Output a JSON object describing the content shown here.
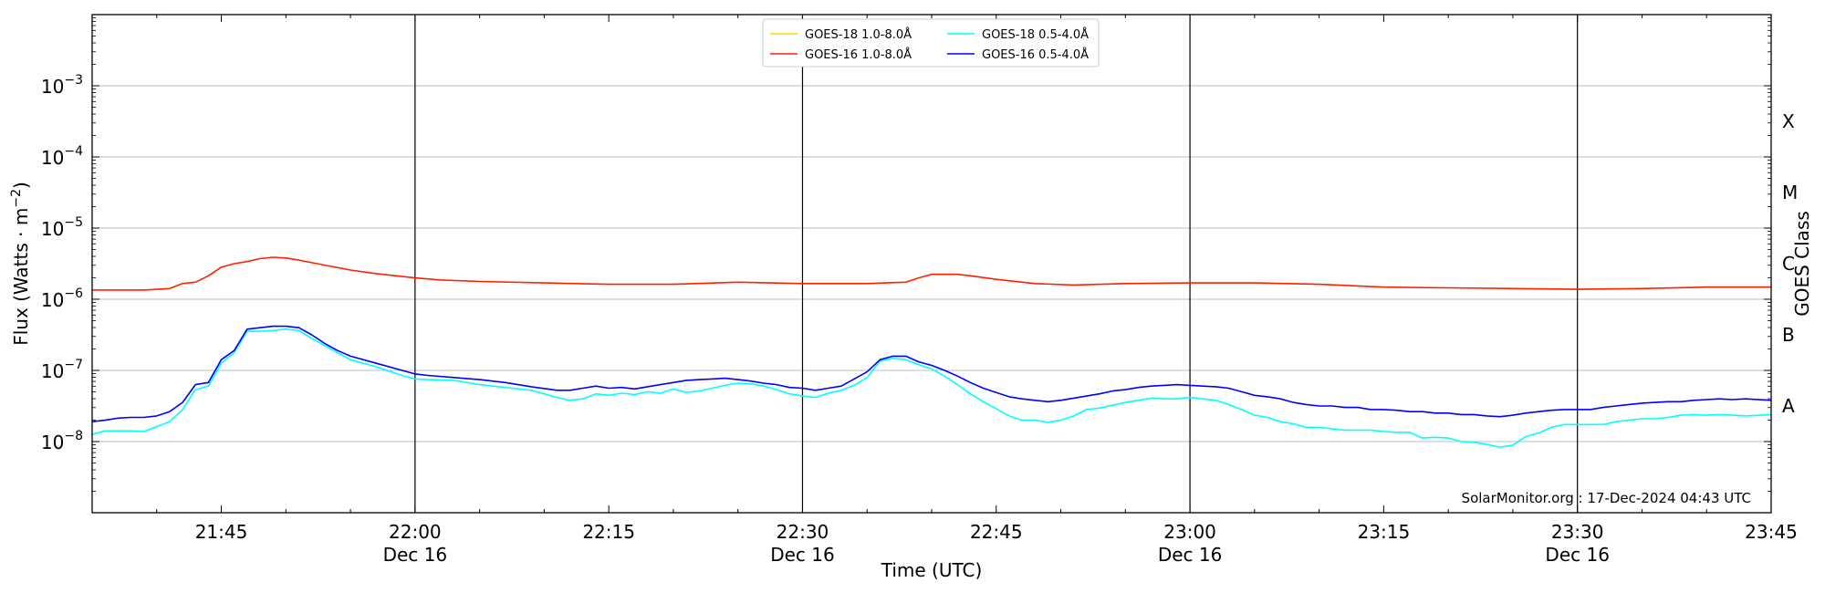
{
  "chart_data": {
    "type": "line",
    "xlabel": "Time (UTC)",
    "ylabel": "Flux (Watts · m",
    "ylabel_sup": "−2",
    "ylabel_close": ")",
    "right_ylabel": "GOES Class",
    "x_range_minutes": [
      0,
      130
    ],
    "ylim_log10": [
      -9,
      -2
    ],
    "y_scale": "log",
    "x_ticks": [
      {
        "t": 10,
        "line1": "21:45",
        "line2": ""
      },
      {
        "t": 25,
        "line1": "22:00",
        "line2": "Dec 16"
      },
      {
        "t": 40,
        "line1": "22:15",
        "line2": ""
      },
      {
        "t": 55,
        "line1": "22:30",
        "line2": "Dec 16"
      },
      {
        "t": 70,
        "line1": "22:45",
        "line2": ""
      },
      {
        "t": 85,
        "line1": "23:00",
        "line2": "Dec 16"
      },
      {
        "t": 100,
        "line1": "23:15",
        "line2": ""
      },
      {
        "t": 115,
        "line1": "23:30",
        "line2": "Dec 16"
      },
      {
        "t": 130,
        "line1": "23:45",
        "line2": ""
      }
    ],
    "x_origin_time": "21:35",
    "day_lines": [
      25,
      55,
      85,
      115
    ],
    "y_ticks": [
      {
        "exp": -8,
        "base": "10",
        "sup": "−8"
      },
      {
        "exp": -7,
        "base": "10",
        "sup": "−7"
      },
      {
        "exp": -6,
        "base": "10",
        "sup": "−6"
      },
      {
        "exp": -5,
        "base": "10",
        "sup": "−5"
      },
      {
        "exp": -4,
        "base": "10",
        "sup": "−4"
      },
      {
        "exp": -3,
        "base": "10",
        "sup": "−3"
      }
    ],
    "goes_classes": [
      {
        "label": "A",
        "exp": -7.5
      },
      {
        "label": "B",
        "exp": -6.5
      },
      {
        "label": "C",
        "exp": -5.5
      },
      {
        "label": "M",
        "exp": -4.5
      },
      {
        "label": "X",
        "exp": -3.5
      }
    ],
    "grid": true,
    "legend_position": "top-center",
    "credit": "SolarMonitor.org : 17-Dec-2024 04:43 UTC",
    "series": [
      {
        "name": "GOES-18 1.0-8.0Å",
        "color": "#ffd700",
        "points": []
      },
      {
        "name": "GOES-16 1.0-8.0Å",
        "color": "#ff2000",
        "points": [
          [
            0,
            -5.87
          ],
          [
            2,
            -5.87
          ],
          [
            4,
            -5.87
          ],
          [
            6,
            -5.85
          ],
          [
            7,
            -5.78
          ],
          [
            8,
            -5.76
          ],
          [
            9,
            -5.67
          ],
          [
            10,
            -5.55
          ],
          [
            11,
            -5.5
          ],
          [
            12,
            -5.47
          ],
          [
            13,
            -5.43
          ],
          [
            14,
            -5.41
          ],
          [
            15,
            -5.42
          ],
          [
            16,
            -5.45
          ],
          [
            18,
            -5.52
          ],
          [
            20,
            -5.59
          ],
          [
            22,
            -5.64
          ],
          [
            25,
            -5.7
          ],
          [
            27,
            -5.73
          ],
          [
            30,
            -5.75
          ],
          [
            35,
            -5.77
          ],
          [
            40,
            -5.79
          ],
          [
            45,
            -5.79
          ],
          [
            50,
            -5.76
          ],
          [
            55,
            -5.78
          ],
          [
            60,
            -5.78
          ],
          [
            63,
            -5.76
          ],
          [
            64,
            -5.7
          ],
          [
            65,
            -5.65
          ],
          [
            67,
            -5.65
          ],
          [
            68,
            -5.67
          ],
          [
            70,
            -5.72
          ],
          [
            73,
            -5.78
          ],
          [
            76,
            -5.8
          ],
          [
            80,
            -5.78
          ],
          [
            85,
            -5.77
          ],
          [
            90,
            -5.77
          ],
          [
            95,
            -5.79
          ],
          [
            100,
            -5.83
          ],
          [
            105,
            -5.84
          ],
          [
            110,
            -5.85
          ],
          [
            115,
            -5.86
          ],
          [
            120,
            -5.85
          ],
          [
            125,
            -5.83
          ],
          [
            130,
            -5.83
          ]
        ]
      },
      {
        "name": "GOES-18 0.5-4.0Å",
        "color": "#00ffff",
        "points": [
          [
            0,
            -7.9
          ],
          [
            1,
            -7.85
          ],
          [
            2,
            -7.85
          ],
          [
            3,
            -7.85
          ],
          [
            4,
            -7.86
          ],
          [
            5,
            -7.79
          ],
          [
            6,
            -7.72
          ],
          [
            7,
            -7.55
          ],
          [
            8,
            -7.27
          ],
          [
            9,
            -7.22
          ],
          [
            10,
            -6.9
          ],
          [
            11,
            -6.75
          ],
          [
            12,
            -6.45
          ],
          [
            13,
            -6.45
          ],
          [
            14,
            -6.44
          ],
          [
            15,
            -6.42
          ],
          [
            16,
            -6.44
          ],
          [
            17,
            -6.55
          ],
          [
            18,
            -6.65
          ],
          [
            19,
            -6.75
          ],
          [
            20,
            -6.85
          ],
          [
            22,
            -6.95
          ],
          [
            24,
            -7.07
          ],
          [
            25,
            -7.12
          ],
          [
            26,
            -7.13
          ],
          [
            28,
            -7.14
          ],
          [
            30,
            -7.2
          ],
          [
            32,
            -7.24
          ],
          [
            34,
            -7.28
          ],
          [
            36,
            -7.38
          ],
          [
            37,
            -7.42
          ],
          [
            38,
            -7.4
          ],
          [
            39,
            -7.33
          ],
          [
            40,
            -7.35
          ],
          [
            41,
            -7.32
          ],
          [
            42,
            -7.34
          ],
          [
            43,
            -7.3
          ],
          [
            44,
            -7.32
          ],
          [
            45,
            -7.26
          ],
          [
            46,
            -7.31
          ],
          [
            47,
            -7.29
          ],
          [
            48,
            -7.25
          ],
          [
            49,
            -7.21
          ],
          [
            50,
            -7.18
          ],
          [
            51,
            -7.19
          ],
          [
            52,
            -7.22
          ],
          [
            53,
            -7.27
          ],
          [
            54,
            -7.33
          ],
          [
            55,
            -7.36
          ],
          [
            56,
            -7.38
          ],
          [
            57,
            -7.32
          ],
          [
            58,
            -7.28
          ],
          [
            59,
            -7.21
          ],
          [
            60,
            -7.1
          ],
          [
            61,
            -6.87
          ],
          [
            62,
            -6.83
          ],
          [
            63,
            -6.85
          ],
          [
            64,
            -6.92
          ],
          [
            65,
            -6.98
          ],
          [
            66,
            -7.08
          ],
          [
            67,
            -7.2
          ],
          [
            68,
            -7.33
          ],
          [
            69,
            -7.44
          ],
          [
            70,
            -7.54
          ],
          [
            71,
            -7.64
          ],
          [
            72,
            -7.7
          ],
          [
            73,
            -7.7
          ],
          [
            74,
            -7.73
          ],
          [
            75,
            -7.7
          ],
          [
            76,
            -7.64
          ],
          [
            77,
            -7.55
          ],
          [
            78,
            -7.53
          ],
          [
            79,
            -7.49
          ],
          [
            80,
            -7.45
          ],
          [
            81,
            -7.42
          ],
          [
            82,
            -7.39
          ],
          [
            83,
            -7.4
          ],
          [
            84,
            -7.4
          ],
          [
            85,
            -7.38
          ],
          [
            86,
            -7.4
          ],
          [
            87,
            -7.42
          ],
          [
            88,
            -7.48
          ],
          [
            89,
            -7.55
          ],
          [
            90,
            -7.63
          ],
          [
            91,
            -7.66
          ],
          [
            92,
            -7.72
          ],
          [
            93,
            -7.75
          ],
          [
            94,
            -7.8
          ],
          [
            95,
            -7.8
          ],
          [
            96,
            -7.82
          ],
          [
            97,
            -7.84
          ],
          [
            98,
            -7.84
          ],
          [
            99,
            -7.84
          ],
          [
            100,
            -7.86
          ],
          [
            101,
            -7.87
          ],
          [
            102,
            -7.87
          ],
          [
            103,
            -7.95
          ],
          [
            104,
            -7.94
          ],
          [
            105,
            -7.95
          ],
          [
            106,
            -8.0
          ],
          [
            107,
            -8.01
          ],
          [
            108,
            -8.04
          ],
          [
            109,
            -8.08
          ],
          [
            110,
            -8.05
          ],
          [
            111,
            -7.93
          ],
          [
            112,
            -7.88
          ],
          [
            113,
            -7.8
          ],
          [
            114,
            -7.76
          ],
          [
            115,
            -7.76
          ],
          [
            116,
            -7.76
          ],
          [
            117,
            -7.76
          ],
          [
            118,
            -7.72
          ],
          [
            119,
            -7.7
          ],
          [
            120,
            -7.68
          ],
          [
            121,
            -7.68
          ],
          [
            122,
            -7.66
          ],
          [
            123,
            -7.63
          ],
          [
            124,
            -7.62
          ],
          [
            125,
            -7.63
          ],
          [
            126,
            -7.62
          ],
          [
            127,
            -7.63
          ],
          [
            128,
            -7.64
          ],
          [
            130,
            -7.62
          ]
        ]
      },
      {
        "name": "GOES-16 0.5-4.0Å",
        "color": "#0000ff",
        "points": [
          [
            0,
            -7.72
          ],
          [
            1,
            -7.7
          ],
          [
            2,
            -7.67
          ],
          [
            3,
            -7.66
          ],
          [
            4,
            -7.66
          ],
          [
            5,
            -7.64
          ],
          [
            6,
            -7.58
          ],
          [
            7,
            -7.45
          ],
          [
            8,
            -7.2
          ],
          [
            9,
            -7.17
          ],
          [
            10,
            -6.85
          ],
          [
            11,
            -6.72
          ],
          [
            12,
            -6.42
          ],
          [
            13,
            -6.4
          ],
          [
            14,
            -6.38
          ],
          [
            15,
            -6.38
          ],
          [
            16,
            -6.4
          ],
          [
            17,
            -6.5
          ],
          [
            18,
            -6.62
          ],
          [
            19,
            -6.72
          ],
          [
            20,
            -6.8
          ],
          [
            22,
            -6.9
          ],
          [
            24,
            -7.0
          ],
          [
            25,
            -7.05
          ],
          [
            26,
            -7.07
          ],
          [
            28,
            -7.1
          ],
          [
            30,
            -7.13
          ],
          [
            32,
            -7.17
          ],
          [
            34,
            -7.23
          ],
          [
            36,
            -7.28
          ],
          [
            37,
            -7.28
          ],
          [
            38,
            -7.25
          ],
          [
            39,
            -7.22
          ],
          [
            40,
            -7.25
          ],
          [
            41,
            -7.24
          ],
          [
            42,
            -7.26
          ],
          [
            43,
            -7.23
          ],
          [
            44,
            -7.2
          ],
          [
            45,
            -7.17
          ],
          [
            46,
            -7.14
          ],
          [
            47,
            -7.13
          ],
          [
            48,
            -7.12
          ],
          [
            49,
            -7.11
          ],
          [
            50,
            -7.13
          ],
          [
            51,
            -7.15
          ],
          [
            52,
            -7.18
          ],
          [
            53,
            -7.2
          ],
          [
            54,
            -7.24
          ],
          [
            55,
            -7.25
          ],
          [
            56,
            -7.28
          ],
          [
            57,
            -7.25
          ],
          [
            58,
            -7.22
          ],
          [
            59,
            -7.12
          ],
          [
            60,
            -7.02
          ],
          [
            61,
            -6.85
          ],
          [
            62,
            -6.8
          ],
          [
            63,
            -6.8
          ],
          [
            64,
            -6.88
          ],
          [
            65,
            -6.93
          ],
          [
            66,
            -7.0
          ],
          [
            67,
            -7.08
          ],
          [
            68,
            -7.17
          ],
          [
            69,
            -7.25
          ],
          [
            70,
            -7.31
          ],
          [
            71,
            -7.37
          ],
          [
            72,
            -7.4
          ],
          [
            73,
            -7.42
          ],
          [
            74,
            -7.44
          ],
          [
            75,
            -7.42
          ],
          [
            76,
            -7.39
          ],
          [
            77,
            -7.36
          ],
          [
            78,
            -7.33
          ],
          [
            79,
            -7.29
          ],
          [
            80,
            -7.27
          ],
          [
            81,
            -7.24
          ],
          [
            82,
            -7.22
          ],
          [
            83,
            -7.21
          ],
          [
            84,
            -7.2
          ],
          [
            85,
            -7.21
          ],
          [
            86,
            -7.22
          ],
          [
            87,
            -7.23
          ],
          [
            88,
            -7.25
          ],
          [
            89,
            -7.3
          ],
          [
            90,
            -7.35
          ],
          [
            91,
            -7.37
          ],
          [
            92,
            -7.4
          ],
          [
            93,
            -7.45
          ],
          [
            94,
            -7.48
          ],
          [
            95,
            -7.5
          ],
          [
            96,
            -7.5
          ],
          [
            97,
            -7.52
          ],
          [
            98,
            -7.52
          ],
          [
            99,
            -7.55
          ],
          [
            100,
            -7.55
          ],
          [
            101,
            -7.56
          ],
          [
            102,
            -7.58
          ],
          [
            103,
            -7.58
          ],
          [
            104,
            -7.6
          ],
          [
            105,
            -7.6
          ],
          [
            106,
            -7.62
          ],
          [
            107,
            -7.62
          ],
          [
            108,
            -7.64
          ],
          [
            109,
            -7.65
          ],
          [
            110,
            -7.63
          ],
          [
            111,
            -7.6
          ],
          [
            112,
            -7.58
          ],
          [
            113,
            -7.56
          ],
          [
            114,
            -7.55
          ],
          [
            115,
            -7.55
          ],
          [
            116,
            -7.55
          ],
          [
            117,
            -7.52
          ],
          [
            118,
            -7.5
          ],
          [
            119,
            -7.48
          ],
          [
            120,
            -7.46
          ],
          [
            121,
            -7.45
          ],
          [
            122,
            -7.44
          ],
          [
            123,
            -7.44
          ],
          [
            124,
            -7.42
          ],
          [
            125,
            -7.41
          ],
          [
            126,
            -7.4
          ],
          [
            127,
            -7.41
          ],
          [
            128,
            -7.4
          ],
          [
            130,
            -7.42
          ]
        ]
      }
    ]
  }
}
